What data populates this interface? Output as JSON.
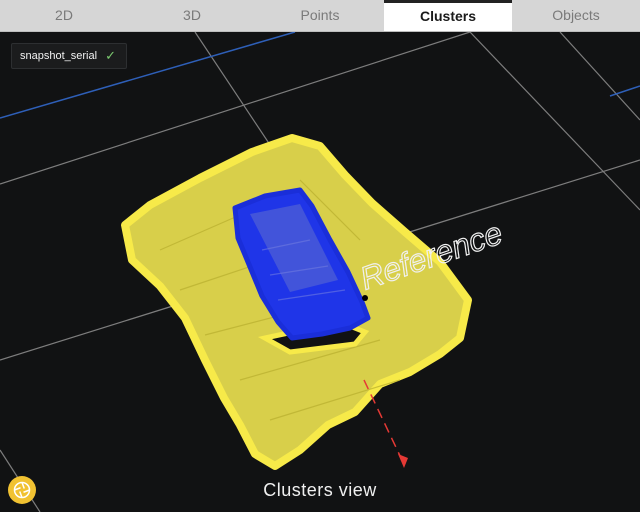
{
  "tabs": [
    {
      "label": "2D",
      "active": false
    },
    {
      "label": "3D",
      "active": false
    },
    {
      "label": "Points",
      "active": false
    },
    {
      "label": "Clusters",
      "active": true
    },
    {
      "label": "Objects",
      "active": false
    }
  ],
  "snapshot": {
    "label": "snapshot_serial",
    "status_icon": "check-icon"
  },
  "scene": {
    "reference_label": "Reference"
  },
  "caption": "Clusters view",
  "camera_button": {
    "icon": "shutter-icon"
  },
  "colors": {
    "background": "#111213",
    "outer_cluster": "#e8d84a",
    "inner_cluster": "#1f35e8",
    "grid": "#7d7d7d",
    "blue_line": "#2e5fb8",
    "axis_red": "#e53935"
  }
}
